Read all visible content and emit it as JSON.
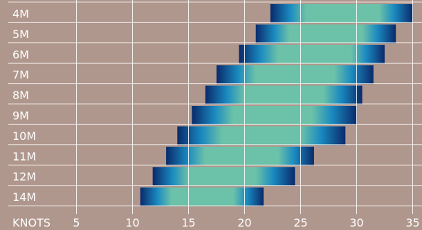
{
  "chart_data": {
    "type": "bar",
    "orientation": "horizontal",
    "title": "",
    "xlabel": "KNOTS",
    "ylabel": "",
    "xlim": [
      0,
      35
    ],
    "x_ticks": [
      5,
      10,
      15,
      20,
      25,
      30,
      35
    ],
    "grid": "vertical",
    "categories": [
      "4M",
      "5M",
      "6M",
      "7M",
      "8M",
      "9M",
      "10M",
      "11M",
      "12M",
      "14M"
    ],
    "ranges": [
      {
        "size": "4M",
        "min": 22.3,
        "optimal_min": 25.5,
        "optimal_max": 32.0,
        "max": 35.0
      },
      {
        "size": "5M",
        "min": 21.0,
        "optimal_min": 24.0,
        "optimal_max": 30.5,
        "max": 33.5
      },
      {
        "size": "6M",
        "min": 19.5,
        "optimal_min": 23.0,
        "optimal_max": 29.5,
        "max": 32.5
      },
      {
        "size": "7M",
        "min": 17.5,
        "optimal_min": 21.0,
        "optimal_max": 28.0,
        "max": 31.5
      },
      {
        "size": "8M",
        "min": 16.5,
        "optimal_min": 20.0,
        "optimal_max": 27.0,
        "max": 30.5
      },
      {
        "size": "9M",
        "min": 15.3,
        "optimal_min": 19.0,
        "optimal_max": 26.0,
        "max": 30.0
      },
      {
        "size": "10M",
        "min": 14.0,
        "optimal_min": 18.0,
        "optimal_max": 25.0,
        "max": 29.0
      },
      {
        "size": "11M",
        "min": 13.0,
        "optimal_min": 16.5,
        "optimal_max": 23.0,
        "max": 26.2
      },
      {
        "size": "12M",
        "min": 11.8,
        "optimal_min": 15.0,
        "optimal_max": 21.0,
        "max": 24.5
      },
      {
        "size": "14M",
        "min": 10.7,
        "optimal_min": 13.5,
        "optimal_max": 19.0,
        "max": 21.7
      }
    ],
    "colors": {
      "background": "#b0978d",
      "grid": "#ffffff",
      "edge": "#0a2a6b",
      "mid": "#1a8ac0",
      "optimal": "#6cc2a8",
      "text": "#ffffff"
    }
  }
}
